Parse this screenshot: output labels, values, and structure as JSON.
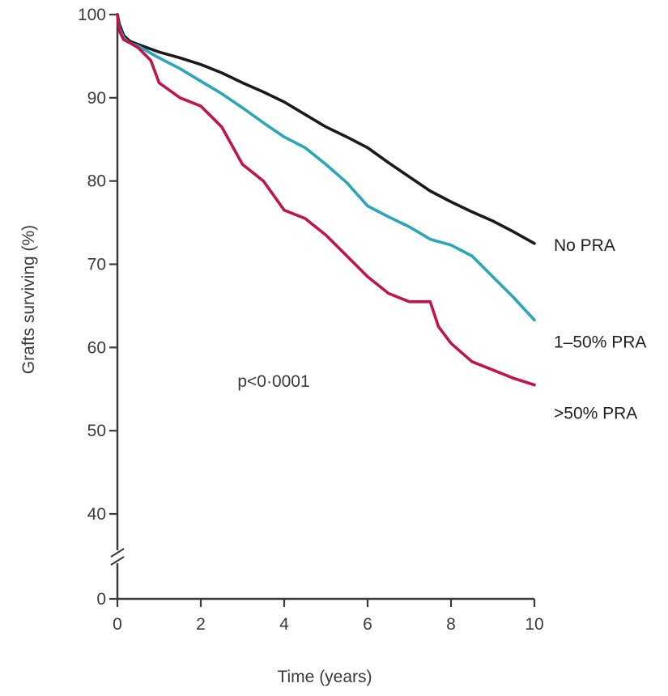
{
  "chart_data": {
    "type": "line",
    "xlabel": "Time (years)",
    "ylabel": "Grafts surviving (%)",
    "xlim": [
      0,
      10
    ],
    "ylim": [
      0,
      100
    ],
    "axis_break": "between 0 and 40 on y-axis",
    "x_ticks": [
      {
        "value": 0,
        "label": "0"
      },
      {
        "value": 2,
        "label": "2"
      },
      {
        "value": 4,
        "label": "4"
      },
      {
        "value": 6,
        "label": "6"
      },
      {
        "value": 8,
        "label": "8"
      },
      {
        "value": 10,
        "label": "10"
      }
    ],
    "y_ticks": [
      {
        "value": 0,
        "label": "0"
      },
      {
        "value": 40,
        "label": "40"
      },
      {
        "value": 50,
        "label": "50"
      },
      {
        "value": 60,
        "label": "60"
      },
      {
        "value": 70,
        "label": "70"
      },
      {
        "value": 80,
        "label": "80"
      },
      {
        "value": 90,
        "label": "90"
      },
      {
        "value": 100,
        "label": "100"
      }
    ],
    "grid": false,
    "legend": "direct labels at right end of each line",
    "annotation": "p<0·0001",
    "series": [
      {
        "name": "No PRA",
        "color": "#1a1a1a",
        "x": [
          0,
          0.05,
          0.15,
          0.3,
          0.5,
          1,
          1.5,
          2,
          2.5,
          3,
          3.5,
          4,
          4.5,
          5,
          5.5,
          6,
          6.5,
          7,
          7.5,
          8,
          8.5,
          9,
          9.5,
          10
        ],
        "y": [
          100,
          98.8,
          97.5,
          96.8,
          96.4,
          95.5,
          94.8,
          94.0,
          93.0,
          91.8,
          90.7,
          89.5,
          88.0,
          86.5,
          85.3,
          84.0,
          82.2,
          80.5,
          78.8,
          77.5,
          76.3,
          75.2,
          73.9,
          72.5
        ]
      },
      {
        "name": "1–50% PRA",
        "color": "#2aa6b8",
        "x": [
          0,
          0.05,
          0.15,
          0.3,
          0.5,
          1,
          1.5,
          2,
          2.5,
          3,
          3.5,
          4,
          4.5,
          5,
          5.5,
          6,
          6.5,
          7,
          7.5,
          8,
          8.5,
          9,
          9.5,
          10
        ],
        "y": [
          100,
          98.3,
          97.2,
          96.6,
          96.2,
          94.8,
          93.5,
          92.0,
          90.5,
          88.8,
          87.0,
          85.3,
          84.0,
          82.0,
          79.8,
          77.0,
          75.7,
          74.5,
          73.0,
          72.3,
          71.0,
          68.5,
          66.0,
          63.3
        ]
      },
      {
        "name": ">50% PRA",
        "color": "#c0144c",
        "x": [
          0,
          0.05,
          0.15,
          0.3,
          0.5,
          0.8,
          1,
          1.5,
          2,
          2.5,
          3,
          3.5,
          4,
          4.5,
          5,
          5.5,
          6,
          6.5,
          7,
          7.5,
          7.7,
          8,
          8.5,
          9,
          9.5,
          10
        ],
        "y": [
          100,
          98.0,
          97.0,
          96.6,
          96.0,
          94.5,
          91.8,
          90.0,
          89.0,
          86.5,
          82.0,
          80.0,
          76.5,
          75.5,
          73.5,
          71.0,
          68.5,
          66.5,
          65.5,
          65.5,
          62.5,
          60.5,
          58.3,
          57.3,
          56.3,
          55.5
        ]
      }
    ]
  }
}
